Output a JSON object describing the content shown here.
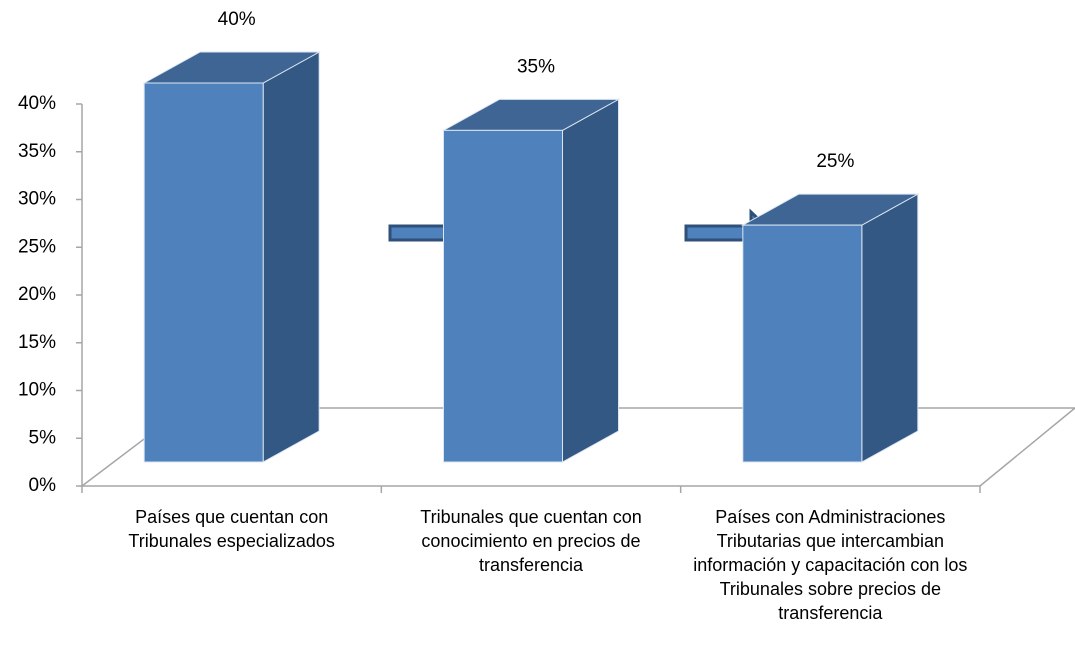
{
  "chart_data": {
    "type": "bar3d",
    "categories": [
      "Países que cuentan con Tribunales especializados",
      "Tribunales que cuentan con conocimiento en precios de transferencia",
      "Países con Administraciones Tributarias que intercambian información y capacitación con los Tribunales sobre precios de transferencia"
    ],
    "values": [
      40,
      35,
      25
    ],
    "value_labels": [
      "40%",
      "35%",
      "25%"
    ],
    "color": "#4f81bd",
    "ylim": [
      0,
      40
    ],
    "yticks": [
      {
        "value": 0,
        "label": "0%"
      },
      {
        "value": 5,
        "label": "5%"
      },
      {
        "value": 10,
        "label": "10%"
      },
      {
        "value": 15,
        "label": "15%"
      },
      {
        "value": 20,
        "label": "20%"
      },
      {
        "value": 25,
        "label": "25%"
      },
      {
        "value": 30,
        "label": "30%"
      },
      {
        "value": 35,
        "label": "35%"
      },
      {
        "value": 40,
        "label": "40%"
      }
    ]
  }
}
